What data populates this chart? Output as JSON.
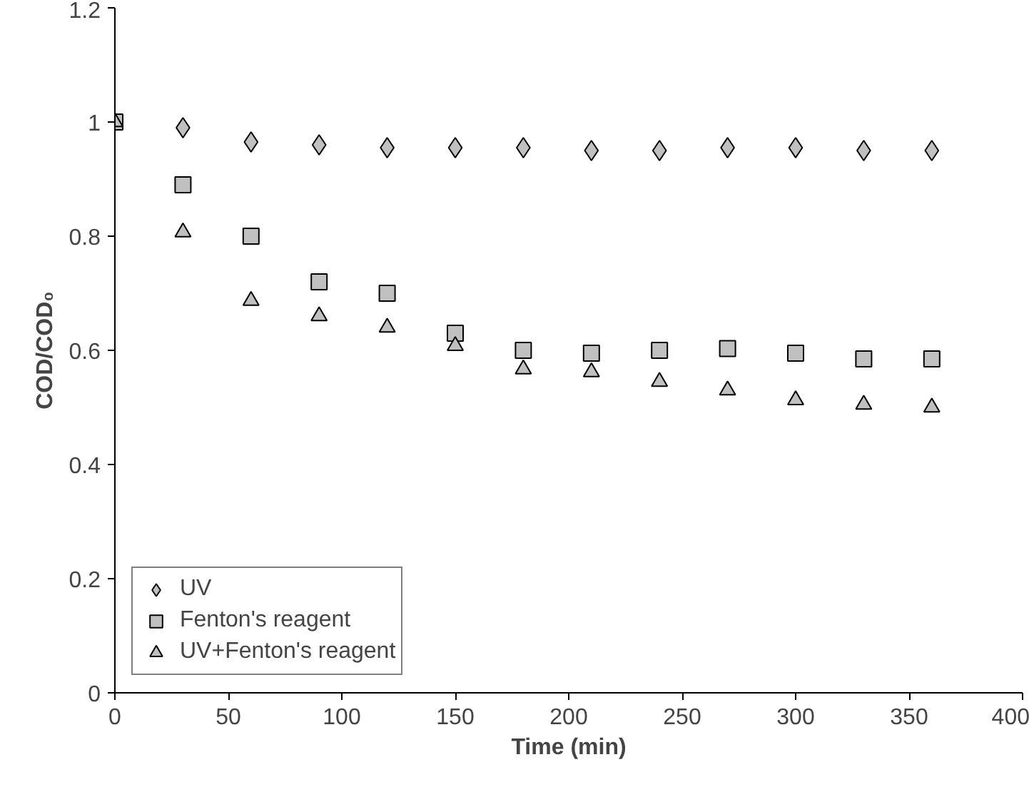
{
  "chart_data": {
    "type": "scatter",
    "xlabel": "Time (min)",
    "ylabel": "COD/COD₀",
    "x": [
      0,
      30,
      60,
      90,
      120,
      150,
      180,
      210,
      240,
      270,
      300,
      330,
      360
    ],
    "xlim": [
      0,
      400
    ],
    "xticks": [
      0,
      50,
      100,
      150,
      200,
      250,
      300,
      350,
      400
    ],
    "ylim": [
      0,
      1.2
    ],
    "yticks": [
      0,
      0.2,
      0.4,
      0.6,
      0.8,
      1,
      1.2
    ],
    "grid": false,
    "legend": "bottom left",
    "series": [
      {
        "name": "UV",
        "color": "#c0c0c0",
        "marker": "diamond",
        "values": [
          null,
          0.99,
          0.965,
          0.96,
          0.955,
          0.955,
          0.955,
          0.95,
          0.95,
          0.955,
          0.955,
          0.95,
          0.95
        ]
      },
      {
        "name": "Fenton's reagent",
        "color": "#c0c0c0",
        "marker": "square",
        "values": [
          1.0,
          0.89,
          0.8,
          0.72,
          0.7,
          0.63,
          0.6,
          0.595,
          0.6,
          0.603,
          0.595,
          0.585,
          0.585
        ]
      },
      {
        "name": "UV+Fenton's reagent",
        "color": "#c0c0c0",
        "marker": "triangle",
        "values": [
          1.0,
          0.807,
          0.687,
          0.66,
          0.64,
          0.608,
          0.567,
          0.562,
          0.545,
          0.53,
          0.513,
          0.505,
          0.5
        ]
      }
    ]
  }
}
